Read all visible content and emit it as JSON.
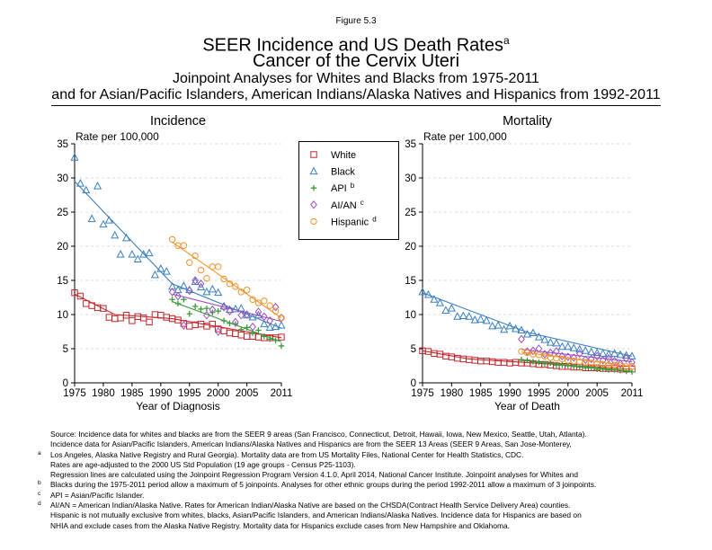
{
  "figure_label": "Figure 5.3",
  "title": "SEER Incidence and US Death Rates",
  "title_sup": "a",
  "title_line2": "Cancer of the Cervix Uteri",
  "subtitle_line1": "Joinpoint Analyses for Whites and Blacks from 1975-2011",
  "subtitle_line2": "and for Asian/Pacific Islanders, American Indians/Alaska Natives and Hispanics from 1992-2011",
  "colors": {
    "white": "#c0272d",
    "black": "#3a7fc1",
    "api": "#3a9b3a",
    "aian": "#9b4fc0",
    "hispanic": "#f0922b"
  },
  "legend": [
    {
      "key": "white",
      "label": "White",
      "sup": "",
      "marker": "square"
    },
    {
      "key": "black",
      "label": "Black",
      "sup": "",
      "marker": "triangle"
    },
    {
      "key": "api",
      "label": "API",
      "sup": "b",
      "marker": "plus"
    },
    {
      "key": "aian",
      "label": "AI/AN",
      "sup": "c",
      "marker": "diamond"
    },
    {
      "key": "hispanic",
      "label": "Hispanic",
      "sup": "d",
      "marker": "circle"
    }
  ],
  "chart_data": [
    {
      "type": "scatter",
      "title": "Incidence",
      "xlabel": "Year of Diagnosis",
      "ylabel": "Rate per 100,000",
      "xlim": [
        1975,
        2011
      ],
      "ylim": [
        0,
        35
      ],
      "xticks": [
        1975,
        1980,
        1985,
        1990,
        1995,
        2000,
        2005,
        2011
      ],
      "yticks": [
        0,
        5,
        10,
        15,
        20,
        25,
        30,
        35
      ],
      "grid": "horizontal dashed",
      "series": [
        {
          "name": "White",
          "key": "white",
          "marker": "square",
          "x": [
            1975,
            1976,
            1977,
            1978,
            1979,
            1980,
            1981,
            1982,
            1983,
            1984,
            1985,
            1986,
            1987,
            1988,
            1989,
            1990,
            1991,
            1992,
            1993,
            1994,
            1995,
            1996,
            1997,
            1998,
            1999,
            2000,
            2001,
            2002,
            2003,
            2004,
            2005,
            2006,
            2007,
            2008,
            2009,
            2010,
            2011
          ],
          "values": [
            13.2,
            12.7,
            11.6,
            11.3,
            11.0,
            10.9,
            9.6,
            9.4,
            9.5,
            9.9,
            9.1,
            9.7,
            9.5,
            8.9,
            10.0,
            9.9,
            9.6,
            9.4,
            9.2,
            8.7,
            8.3,
            8.5,
            8.6,
            8.3,
            8.6,
            7.9,
            7.6,
            7.3,
            7.2,
            7.0,
            6.8,
            6.8,
            6.7,
            6.6,
            6.6,
            6.6,
            6.7
          ],
          "trend_x": [
            1975,
            1982,
            1992,
            2011
          ],
          "trend_y": [
            13.0,
            10.0,
            9.4,
            6.6
          ]
        },
        {
          "name": "Black",
          "key": "black",
          "marker": "triangle",
          "x": [
            1975,
            1976,
            1977,
            1978,
            1979,
            1980,
            1981,
            1982,
            1983,
            1984,
            1985,
            1986,
            1987,
            1988,
            1989,
            1990,
            1991,
            1992,
            1993,
            1994,
            1995,
            1996,
            1997,
            1998,
            1999,
            2000,
            2001,
            2002,
            2003,
            2004,
            2005,
            2006,
            2007,
            2008,
            2009,
            2010,
            2011
          ],
          "values": [
            33.0,
            29.2,
            28.2,
            24.0,
            28.8,
            23.2,
            23.8,
            21.6,
            18.8,
            21.2,
            18.8,
            18.1,
            18.8,
            19.0,
            15.8,
            16.7,
            16.3,
            14.1,
            13.6,
            14.2,
            13.6,
            14.8,
            14.0,
            13.3,
            13.7,
            13.2,
            11.2,
            10.7,
            10.8,
            10.9,
            9.9,
            9.6,
            9.9,
            8.6,
            8.1,
            8.2,
            8.4
          ],
          "trend_x": [
            1975,
            1992,
            2011
          ],
          "trend_y": [
            29.5,
            14.5,
            8.0
          ]
        },
        {
          "name": "API",
          "key": "api",
          "marker": "plus",
          "x": [
            1992,
            1993,
            1994,
            1995,
            1996,
            1997,
            1998,
            1999,
            2000,
            2001,
            2002,
            2003,
            2004,
            2005,
            2006,
            2007,
            2008,
            2009,
            2010,
            2011
          ],
          "values": [
            12.2,
            11.6,
            12.2,
            10.1,
            11.2,
            10.8,
            10.9,
            10.3,
            10.5,
            9.1,
            8.7,
            8.6,
            7.8,
            8.1,
            7.3,
            7.7,
            6.8,
            6.4,
            6.2,
            5.4
          ],
          "trend_x": [
            1992,
            2011
          ],
          "trend_y": [
            11.9,
            6.0
          ]
        },
        {
          "name": "AI/AN",
          "key": "aian",
          "marker": "diamond",
          "x": [
            1992,
            1993,
            1994,
            1995,
            1996,
            1997,
            1998,
            1999,
            2000,
            2001,
            2002,
            2003,
            2004,
            2005,
            2006,
            2007,
            2008,
            2009,
            2010,
            2011
          ],
          "values": [
            13.3,
            12.7,
            8.4,
            13.5,
            15.0,
            14.5,
            9.9,
            10.7,
            7.5,
            11.1,
            10.5,
            8.9,
            9.9,
            10.0,
            8.2,
            10.4,
            9.7,
            9.1,
            11.1,
            9.5
          ],
          "trend_x": [
            1992,
            2011
          ],
          "trend_y": [
            13.0,
            9.0
          ]
        },
        {
          "name": "Hispanic",
          "key": "hispanic",
          "marker": "circle",
          "x": [
            1992,
            1993,
            1994,
            1995,
            1996,
            1997,
            1998,
            1999,
            2000,
            2001,
            2002,
            2003,
            2004,
            2005,
            2006,
            2007,
            2008,
            2009,
            2010,
            2011
          ],
          "values": [
            21.0,
            20.1,
            20.1,
            17.6,
            18.6,
            16.5,
            15.3,
            17.0,
            17.0,
            15.2,
            14.5,
            14.1,
            13.3,
            13.6,
            12.2,
            11.7,
            12.0,
            11.3,
            10.5,
            9.5
          ],
          "trend_x": [
            1992,
            2011
          ],
          "trend_y": [
            20.6,
            9.5
          ]
        }
      ]
    },
    {
      "type": "scatter",
      "title": "Mortality",
      "xlabel": "Year of Death",
      "ylabel": "Rate per 100,000",
      "xlim": [
        1975,
        2011
      ],
      "ylim": [
        0,
        35
      ],
      "xticks": [
        1975,
        1980,
        1985,
        1990,
        1995,
        2000,
        2005,
        2011
      ],
      "yticks": [
        0,
        5,
        10,
        15,
        20,
        25,
        30,
        35
      ],
      "grid": "horizontal dashed",
      "series": [
        {
          "name": "White",
          "key": "white",
          "marker": "square",
          "x": [
            1975,
            1976,
            1977,
            1978,
            1979,
            1980,
            1981,
            1982,
            1983,
            1984,
            1985,
            1986,
            1987,
            1988,
            1989,
            1990,
            1991,
            1992,
            1993,
            1994,
            1995,
            1996,
            1997,
            1998,
            1999,
            2000,
            2001,
            2002,
            2003,
            2004,
            2005,
            2006,
            2007,
            2008,
            2009,
            2010,
            2011
          ],
          "values": [
            4.7,
            4.6,
            4.3,
            4.2,
            3.9,
            3.8,
            3.6,
            3.5,
            3.4,
            3.3,
            3.2,
            3.2,
            3.1,
            3.0,
            3.0,
            2.9,
            3.0,
            2.9,
            2.9,
            2.8,
            2.7,
            2.7,
            2.6,
            2.5,
            2.4,
            2.4,
            2.3,
            2.3,
            2.2,
            2.2,
            2.2,
            2.1,
            2.1,
            2.1,
            2.0,
            2.0,
            2.0
          ],
          "trend_x": [
            1975,
            1983,
            2011
          ],
          "trend_y": [
            4.7,
            3.5,
            2.0
          ]
        },
        {
          "name": "Black",
          "key": "black",
          "marker": "triangle",
          "x": [
            1975,
            1976,
            1977,
            1978,
            1979,
            1980,
            1981,
            1982,
            1983,
            1984,
            1985,
            1986,
            1987,
            1988,
            1989,
            1990,
            1991,
            1992,
            1993,
            1994,
            1995,
            1996,
            1997,
            1998,
            1999,
            2000,
            2001,
            2002,
            2003,
            2004,
            2005,
            2006,
            2007,
            2008,
            2009,
            2010,
            2011
          ],
          "values": [
            13.3,
            12.9,
            12.2,
            11.7,
            10.6,
            10.9,
            9.7,
            9.8,
            9.7,
            9.2,
            9.3,
            9.1,
            8.3,
            8.4,
            7.8,
            8.3,
            7.9,
            7.7,
            7.1,
            7.3,
            6.7,
            6.3,
            5.9,
            5.8,
            5.3,
            5.3,
            5.1,
            4.9,
            4.7,
            4.5,
            4.4,
            4.3,
            4.2,
            4.3,
            4.1,
            4.0,
            3.9
          ],
          "trend_x": [
            1975,
            1993,
            2011
          ],
          "trend_y": [
            13.2,
            7.4,
            3.9
          ]
        },
        {
          "name": "API",
          "key": "api",
          "marker": "plus",
          "x": [
            1992,
            1993,
            1994,
            1995,
            1996,
            1997,
            1998,
            1999,
            2000,
            2001,
            2002,
            2003,
            2004,
            2005,
            2006,
            2007,
            2008,
            2009,
            2010,
            2011
          ],
          "values": [
            3.4,
            3.3,
            3.1,
            3.0,
            2.8,
            2.9,
            2.6,
            2.6,
            2.5,
            2.4,
            2.3,
            2.2,
            2.2,
            2.0,
            2.0,
            1.9,
            1.9,
            1.8,
            1.7,
            1.6
          ],
          "trend_x": [
            1992,
            2011
          ],
          "trend_y": [
            3.3,
            1.7
          ]
        },
        {
          "name": "AI/AN",
          "key": "aian",
          "marker": "diamond",
          "x": [
            1992,
            1993,
            1994,
            1995,
            1996,
            1997,
            1998,
            1999,
            2000,
            2001,
            2002,
            2003,
            2004,
            2005,
            2006,
            2007,
            2008,
            2009,
            2010,
            2011
          ],
          "values": [
            6.4,
            4.6,
            4.7,
            5.0,
            4.2,
            4.4,
            4.6,
            3.9,
            3.8,
            3.7,
            4.3,
            3.4,
            3.5,
            3.9,
            3.3,
            3.6,
            3.2,
            2.8,
            3.6,
            3.0
          ],
          "trend_x": [
            1992,
            2011
          ],
          "trend_y": [
            4.9,
            3.1
          ]
        },
        {
          "name": "Hispanic",
          "key": "hispanic",
          "marker": "circle",
          "x": [
            1992,
            1993,
            1994,
            1995,
            1996,
            1997,
            1998,
            1999,
            2000,
            2001,
            2002,
            2003,
            2004,
            2005,
            2006,
            2007,
            2008,
            2009,
            2010,
            2011
          ],
          "values": [
            4.6,
            4.4,
            4.2,
            4.1,
            3.9,
            3.7,
            3.6,
            3.5,
            3.3,
            3.2,
            3.1,
            3.0,
            2.9,
            2.8,
            2.7,
            2.6,
            2.6,
            2.5,
            2.4,
            2.4
          ],
          "trend_x": [
            1992,
            2011
          ],
          "trend_y": [
            4.5,
            2.4
          ]
        }
      ]
    }
  ],
  "footnotes": [
    {
      "mark": "",
      "text": "Source:  Incidence data for whites and blacks are from the SEER 9 areas (San Francisco, Connecticut, Detroit, Hawaii, Iowa, New Mexico, Seattle, Utah, Atlanta)."
    },
    {
      "mark": "",
      "text": "Incidence data for Asian/Pacific Islanders, American Indians/Alaska Natives and Hispanics are from the SEER 13 Areas (SEER 9 Areas, San Jose-Monterey,"
    },
    {
      "mark": "a",
      "text": "Los Angeles, Alaska Native Registry and Rural Georgia).  Mortality data are from US Mortality Files, National Center for Health Statistics, CDC."
    },
    {
      "mark": "",
      "text": "Rates are age-adjusted to the 2000 US Std Population (19 age groups - Census P25-1103)."
    },
    {
      "mark": "",
      "text": "Regression lines are calculated using the Joinpoint Regression Program Version 4.1.0, April 2014, National Cancer Institute.  Joinpoint analyses for Whites and"
    },
    {
      "mark": "b",
      "text": "Blacks during the 1975-2011 period allow a maximum of 5 joinpoints.  Analyses for other ethnic groups during the period 1992-2011 allow a maximum of 3 joinpoints."
    },
    {
      "mark": "c",
      "text": "API = Asian/Pacific Islander."
    },
    {
      "mark": "d",
      "text": "AI/AN = American Indian/Alaska Native.  Rates for American Indian/Alaska Native are based on the CHSDA(Contract Health Service Delivery Area) counties."
    },
    {
      "mark": "",
      "text": "Hispanic is not mutually exclusive from whites, blacks, Asian/Pacific Islanders, and American Indians/Alaska Natives.  Incidence data for Hispanics are based on"
    },
    {
      "mark": "",
      "text": "NHIA and exclude cases from the Alaska Native Registry.  Mortality data for Hispanics exclude cases from New Hampshire and Oklahoma."
    }
  ]
}
